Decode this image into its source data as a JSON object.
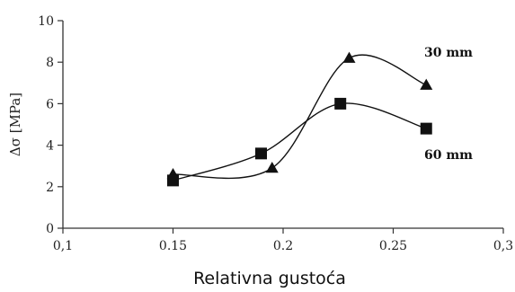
{
  "chart_data": {
    "type": "line",
    "xlabel": "Relativna gustoća",
    "ylabel": "Δσ [MPa]",
    "xlim": [
      0.1,
      0.3
    ],
    "ylim": [
      0,
      10
    ],
    "x_ticks": [
      0.1,
      0.15,
      0.2,
      0.25,
      0.3
    ],
    "x_tick_labels": [
      "0,1",
      "0.15",
      "0.2",
      "0.25",
      "0,3"
    ],
    "y_ticks": [
      0,
      2,
      4,
      6,
      8,
      10
    ],
    "y_tick_labels": [
      "0",
      "2",
      "4",
      "6",
      "8",
      "10"
    ],
    "grid": false,
    "series": [
      {
        "name": "30 mm",
        "marker": "triangle",
        "color": "#111111",
        "x": [
          0.15,
          0.195,
          0.23,
          0.265
        ],
        "y": [
          2.6,
          2.9,
          8.2,
          6.9
        ]
      },
      {
        "name": "60 mm",
        "marker": "square",
        "color": "#111111",
        "x": [
          0.15,
          0.19,
          0.226,
          0.265
        ],
        "y": [
          2.3,
          3.6,
          6.0,
          4.8
        ]
      }
    ]
  }
}
